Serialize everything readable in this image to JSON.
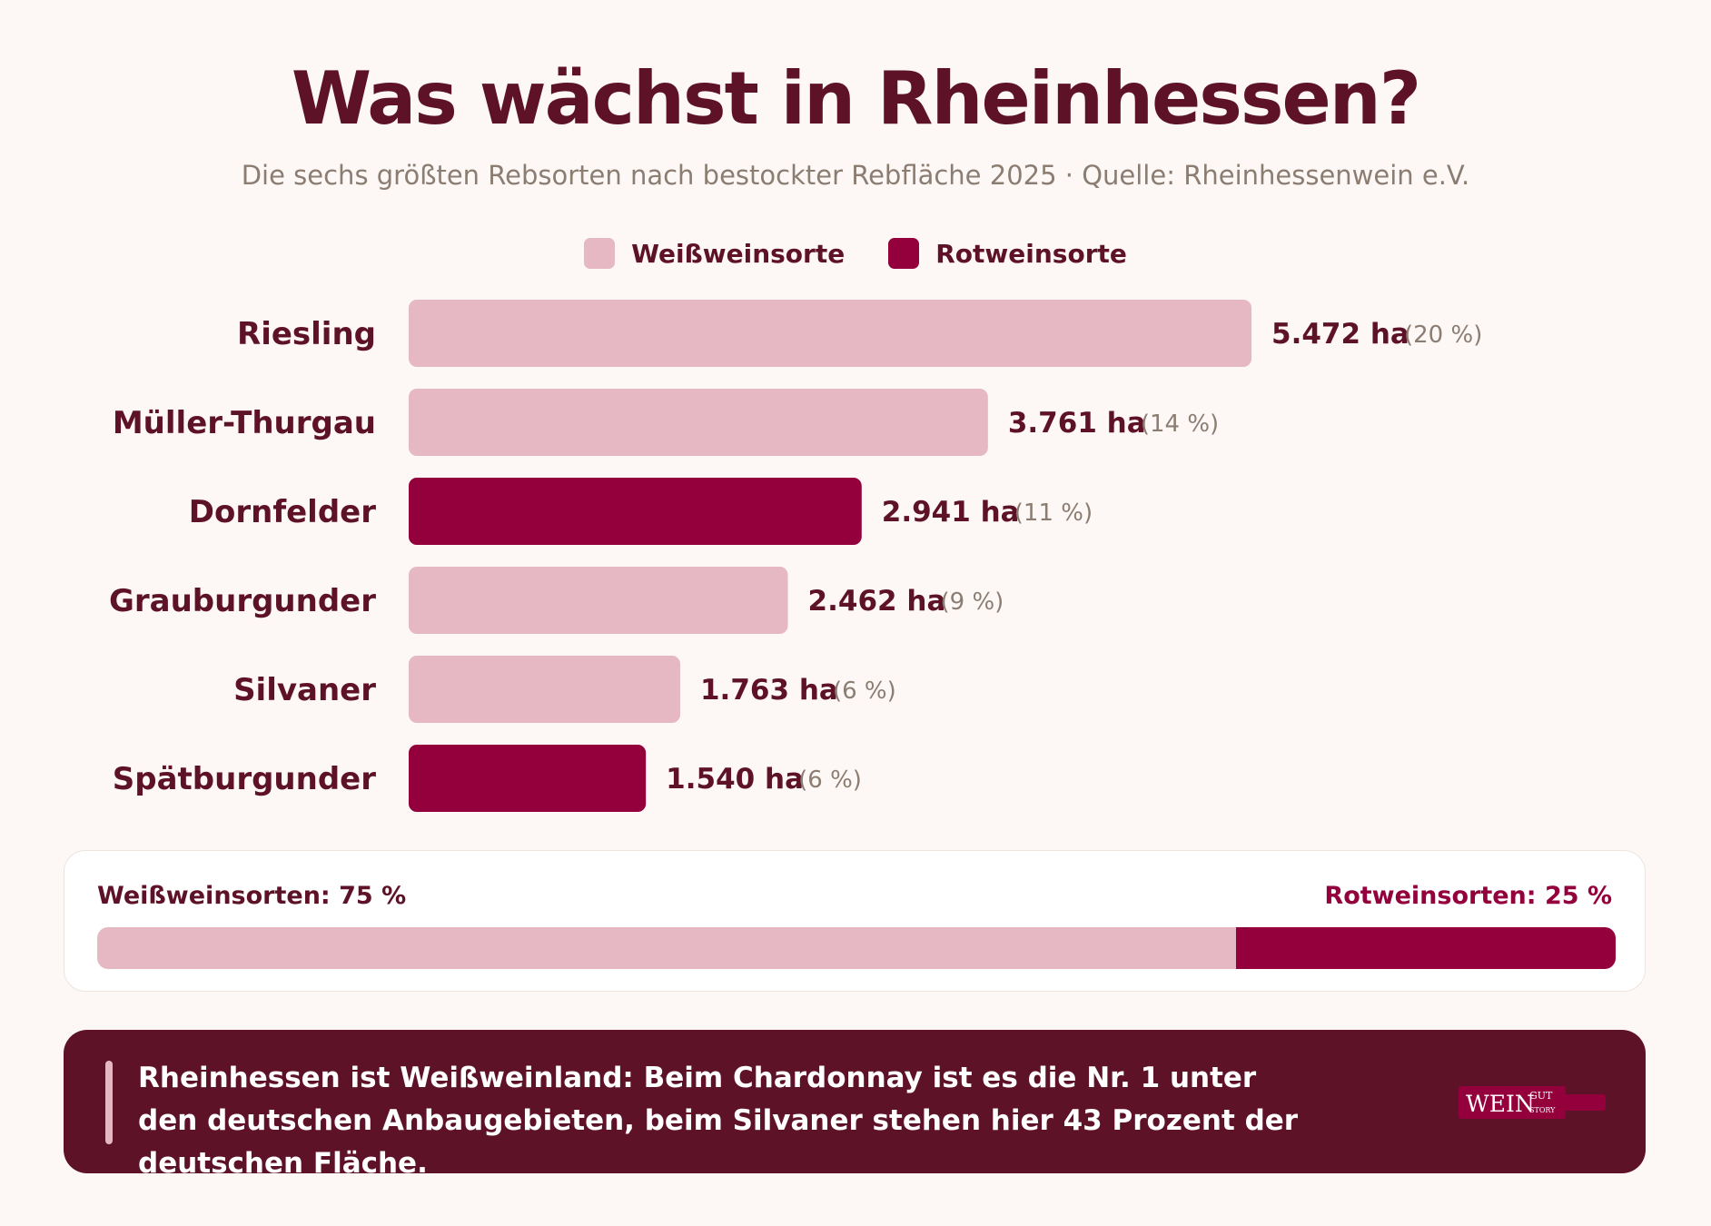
{
  "title": "Was wächst in Rheinhessen?",
  "subtitle": "Die sechs größten Rebsorten nach bestockter Rebfläche 2025 · Quelle: Rheinhessenwein e.V.",
  "colors": {
    "white_wine": "#e5b8c4",
    "red_wine": "#93003c",
    "text": "#5e1228",
    "muted": "#8b7d72"
  },
  "legend": {
    "white_label": "Weißweinsorte",
    "red_label": "Rotweinsorte"
  },
  "chart_data": {
    "type": "bar",
    "orientation": "horizontal",
    "title": "Was wächst in Rheinhessen?",
    "unit": "ha",
    "categories": [
      "Riesling",
      "Müller-Thurgau",
      "Dornfelder",
      "Grauburgunder",
      "Silvaner",
      "Spätburgunder"
    ],
    "values": [
      5472,
      3761,
      2941,
      2462,
      1763,
      1540
    ],
    "value_labels": [
      "5.472 ha",
      "3.761 ha",
      "2.941 ha",
      "2.462 ha",
      "1.763 ha",
      "1.540 ha"
    ],
    "percent_labels": [
      "(20 %)",
      "(14 %)",
      "(11 %)",
      "(9 %)",
      "(6 %)",
      "(6 %)"
    ],
    "wine_type": [
      "white",
      "white",
      "red",
      "white",
      "white",
      "red"
    ],
    "legend": [
      "Weißweinsorte",
      "Rotweinsorte"
    ]
  },
  "summary": {
    "white_label": "Weißweinsorten: 75 %",
    "red_label": "Rotweinsorten: 25 %",
    "white_share": 75,
    "red_share": 25
  },
  "note": {
    "text": "Rheinhessen ist Weißweinland: Beim Chardonnay ist es die Nr. 1 unter den deutschen Anbaugebieten, beim Silvaner stehen hier 43 Prozent der deutschen Fläche.",
    "logo_text_main": "WEIN",
    "logo_text_top": "GUT",
    "logo_text_bottom": "STORY"
  }
}
